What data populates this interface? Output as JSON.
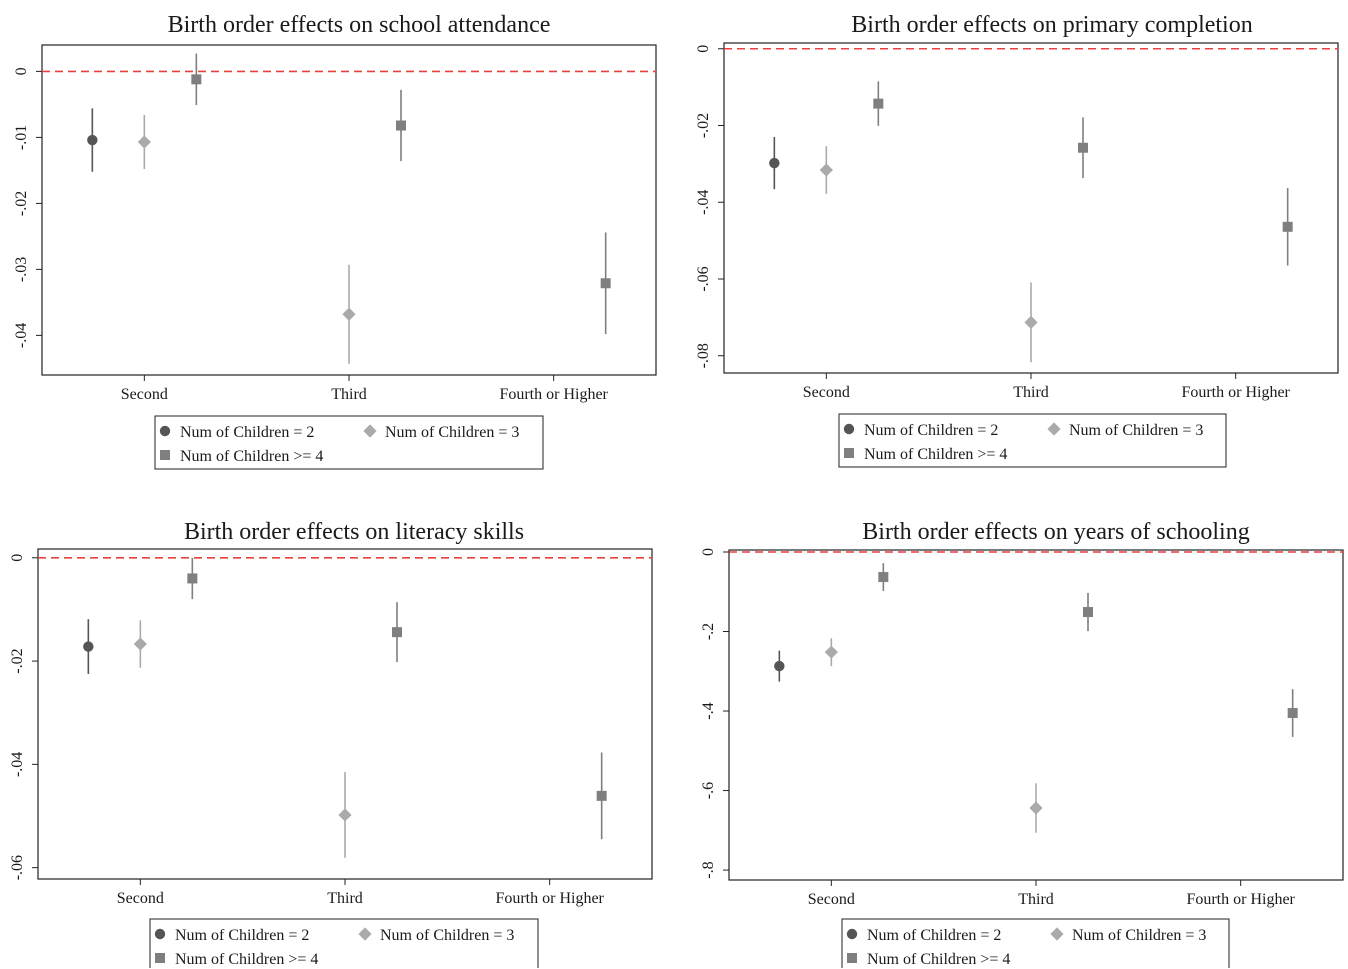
{
  "colors": {
    "num_children_2": "#555555",
    "num_children_3": "#aaaaaa",
    "num_children_4plus": "#7f7f7f",
    "zero_line": "#e8413e",
    "frame": "#222222"
  },
  "chart_data": [
    {
      "type": "scatter",
      "title": "Birth order effects on school attendance",
      "categories": [
        "Second",
        "Third",
        "Fourth or Higher"
      ],
      "ylim": [
        -0.046,
        0.004
      ],
      "yticks": [
        0,
        -0.01,
        -0.02,
        -0.03,
        -0.04
      ],
      "ytick_labels": [
        "0",
        "-.01",
        "-.02",
        "-.03",
        "-.04"
      ],
      "reference_line": 0,
      "series": [
        {
          "name": "Num of Children = 2",
          "marker": "circle",
          "points": [
            {
              "category": "Second",
              "estimate": -0.0104,
              "ci": [
                -0.0152,
                -0.0056
              ]
            }
          ]
        },
        {
          "name": "Num of Children = 3",
          "marker": "diamond",
          "points": [
            {
              "category": "Second",
              "estimate": -0.0107,
              "ci": [
                -0.0148,
                -0.0066
              ]
            },
            {
              "category": "Third",
              "estimate": -0.0368,
              "ci": [
                -0.0443,
                -0.0293
              ]
            }
          ]
        },
        {
          "name": "Num of Children >= 4",
          "marker": "square",
          "points": [
            {
              "category": "Second",
              "estimate": -0.0012,
              "ci": [
                -0.0051,
                0.0027
              ]
            },
            {
              "category": "Third",
              "estimate": -0.0082,
              "ci": [
                -0.0136,
                -0.0028
              ]
            },
            {
              "category": "Fourth or Higher",
              "estimate": -0.0321,
              "ci": [
                -0.0398,
                -0.0244
              ]
            }
          ]
        }
      ]
    },
    {
      "type": "scatter",
      "title": "Birth order effects on primary completion",
      "categories": [
        "Second",
        "Third",
        "Fourth or Higher"
      ],
      "ylim": [
        -0.0845,
        0.0015
      ],
      "yticks": [
        0,
        -0.02,
        -0.04,
        -0.06,
        -0.08
      ],
      "ytick_labels": [
        "0",
        "-.02",
        "-.04",
        "-.06",
        "-.08"
      ],
      "reference_line": 0,
      "series": [
        {
          "name": "Num of Children = 2",
          "marker": "circle",
          "points": [
            {
              "category": "Second",
              "estimate": -0.0298,
              "ci": [
                -0.0366,
                -0.023
              ]
            }
          ]
        },
        {
          "name": "Num of Children = 3",
          "marker": "diamond",
          "points": [
            {
              "category": "Second",
              "estimate": -0.0316,
              "ci": [
                -0.0378,
                -0.0254
              ]
            },
            {
              "category": "Third",
              "estimate": -0.0713,
              "ci": [
                -0.0817,
                -0.0609
              ]
            }
          ]
        },
        {
          "name": "Num of Children >= 4",
          "marker": "square",
          "points": [
            {
              "category": "Second",
              "estimate": -0.0143,
              "ci": [
                -0.0201,
                -0.0085
              ]
            },
            {
              "category": "Third",
              "estimate": -0.0258,
              "ci": [
                -0.0337,
                -0.0179
              ]
            },
            {
              "category": "Fourth or Higher",
              "estimate": -0.0464,
              "ci": [
                -0.0565,
                -0.0363
              ]
            }
          ]
        }
      ]
    },
    {
      "type": "scatter",
      "title": "Birth order effects on literacy skills",
      "categories": [
        "Second",
        "Third",
        "Fourth or Higher"
      ],
      "ylim": [
        -0.0622,
        0.0017
      ],
      "yticks": [
        0,
        -0.02,
        -0.04,
        -0.06
      ],
      "ytick_labels": [
        "0",
        "-.02",
        "-.04",
        "-.06"
      ],
      "reference_line": 0,
      "series": [
        {
          "name": "Num of Children = 2",
          "marker": "circle",
          "points": [
            {
              "category": "Second",
              "estimate": -0.0172,
              "ci": [
                -0.0225,
                -0.0119
              ]
            }
          ]
        },
        {
          "name": "Num of Children = 3",
          "marker": "diamond",
          "points": [
            {
              "category": "Second",
              "estimate": -0.0167,
              "ci": [
                -0.0213,
                -0.0121
              ]
            },
            {
              "category": "Third",
              "estimate": -0.0498,
              "ci": [
                -0.0581,
                -0.0415
              ]
            }
          ]
        },
        {
          "name": "Num of Children >= 4",
          "marker": "square",
          "points": [
            {
              "category": "Second",
              "estimate": -0.004,
              "ci": [
                -0.008,
                0.0
              ]
            },
            {
              "category": "Third",
              "estimate": -0.0144,
              "ci": [
                -0.0202,
                -0.0086
              ]
            },
            {
              "category": "Fourth or Higher",
              "estimate": -0.0461,
              "ci": [
                -0.0545,
                -0.0377
              ]
            }
          ]
        }
      ]
    },
    {
      "type": "scatter",
      "title": "Birth order effects on years of schooling",
      "categories": [
        "Second",
        "Third",
        "Fourth or Higher"
      ],
      "ylim": [
        -0.825,
        0.005
      ],
      "yticks": [
        0,
        -0.2,
        -0.4,
        -0.6,
        -0.8
      ],
      "ytick_labels": [
        "0",
        "-.2",
        "-.4",
        "-.6",
        "-.8"
      ],
      "reference_line": 0,
      "series": [
        {
          "name": "Num of Children = 2",
          "marker": "circle",
          "points": [
            {
              "category": "Second",
              "estimate": -0.287,
              "ci": [
                -0.326,
                -0.248
              ]
            }
          ]
        },
        {
          "name": "Num of Children = 3",
          "marker": "diamond",
          "points": [
            {
              "category": "Second",
              "estimate": -0.252,
              "ci": [
                -0.287,
                -0.217
              ]
            },
            {
              "category": "Third",
              "estimate": -0.644,
              "ci": [
                -0.706,
                -0.582
              ]
            }
          ]
        },
        {
          "name": "Num of Children >= 4",
          "marker": "square",
          "points": [
            {
              "category": "Second",
              "estimate": -0.063,
              "ci": [
                -0.098,
                -0.028
              ]
            },
            {
              "category": "Third",
              "estimate": -0.151,
              "ci": [
                -0.199,
                -0.103
              ]
            },
            {
              "category": "Fourth or Higher",
              "estimate": -0.405,
              "ci": [
                -0.465,
                -0.345
              ]
            }
          ]
        }
      ]
    }
  ]
}
